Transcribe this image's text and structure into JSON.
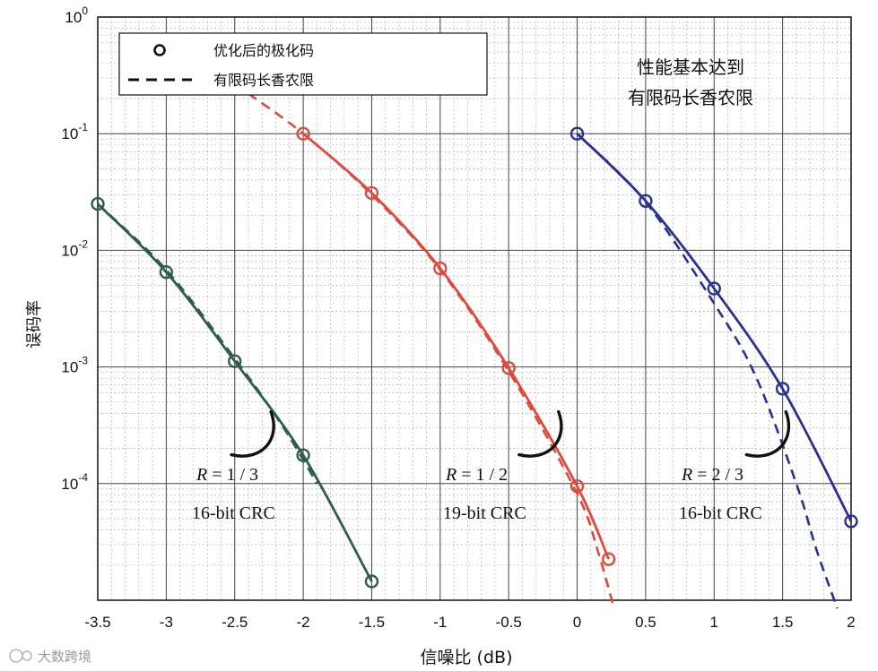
{
  "chart_data": {
    "type": "line",
    "xlabel": "信噪比 (dB)",
    "ylabel": "误码率",
    "xlim": [
      -3.5,
      2
    ],
    "ylim_exp": [
      -5,
      0
    ],
    "y_scale": "log",
    "grid": true,
    "x_ticks": [
      "-3.5",
      "-3",
      "-2.5",
      "-2",
      "-1.5",
      "-1",
      "-0.5",
      "0",
      "0.5",
      "1",
      "1.5",
      "2"
    ],
    "y_ticks": [
      {
        "base": "10",
        "exp": "0",
        "value": 1
      },
      {
        "base": "10",
        "exp": "-1",
        "value": 0.1
      },
      {
        "base": "10",
        "exp": "-2",
        "value": 0.01
      },
      {
        "base": "10",
        "exp": "-3",
        "value": 0.001
      },
      {
        "base": "10",
        "exp": "-4",
        "value": 0.0001
      }
    ],
    "legend": {
      "position": "top-left",
      "entries": [
        {
          "label": "优化后的极化码",
          "style": "circle-marker"
        },
        {
          "label": "有限码长香农限",
          "style": "dashed"
        }
      ]
    },
    "note_lines": [
      "性能基本达到",
      "有限码长香农限"
    ],
    "series": [
      {
        "color": "#2e5e4a",
        "label_R": "R",
        "label_rate": " = 1 / 3",
        "label_crc": "16-bit CRC",
        "points": [
          [
            -3.5,
            0.025
          ],
          [
            -3.0,
            0.0065
          ],
          [
            -2.5,
            0.00112
          ],
          [
            -2.0,
            0.000175
          ],
          [
            -1.5,
            1.45e-05
          ]
        ],
        "shannon": [
          [
            -3.5,
            0.025
          ],
          [
            -3.0,
            0.0068
          ],
          [
            -2.5,
            0.00118
          ],
          [
            -2.2,
            0.00038
          ],
          [
            -2.0,
            0.00016
          ],
          [
            -1.9,
            0.0001
          ]
        ]
      },
      {
        "color": "#e04a3c",
        "label_R": "R",
        "label_rate": " = 1 / 2",
        "label_crc": "19-bit CRC",
        "points": [
          [
            -2.0,
            0.1
          ],
          [
            -1.5,
            0.031
          ],
          [
            -1.0,
            0.007
          ],
          [
            -0.5,
            0.00098
          ],
          [
            0.0,
            9.5e-05
          ],
          [
            0.23,
            2.25e-05
          ]
        ],
        "shannon": [
          [
            -2.4,
            0.22
          ],
          [
            -2.0,
            0.1
          ],
          [
            -1.5,
            0.03
          ],
          [
            -1.0,
            0.0068
          ],
          [
            -0.5,
            0.00092
          ],
          [
            0.0,
            8.2e-05
          ],
          [
            0.15,
            2.65e-05
          ],
          [
            0.27,
            8.5e-06
          ]
        ]
      },
      {
        "color": "#2a3192",
        "label_R": "R",
        "label_rate": " = 2 / 3",
        "label_crc": "16-bit CRC",
        "points": [
          [
            0.0,
            0.1
          ],
          [
            0.5,
            0.0265
          ],
          [
            1.0,
            0.0047
          ],
          [
            1.5,
            0.00065
          ],
          [
            2.0,
            4.75e-05
          ]
        ],
        "shannon": [
          [
            0.0,
            0.1
          ],
          [
            0.5,
            0.026
          ],
          [
            1.0,
            0.0035
          ],
          [
            1.3,
            0.00085
          ],
          [
            1.6,
            0.0001
          ],
          [
            1.75,
            2.65e-05
          ],
          [
            1.9,
            8.5e-06
          ]
        ]
      }
    ]
  },
  "watermark": "大数跨境"
}
